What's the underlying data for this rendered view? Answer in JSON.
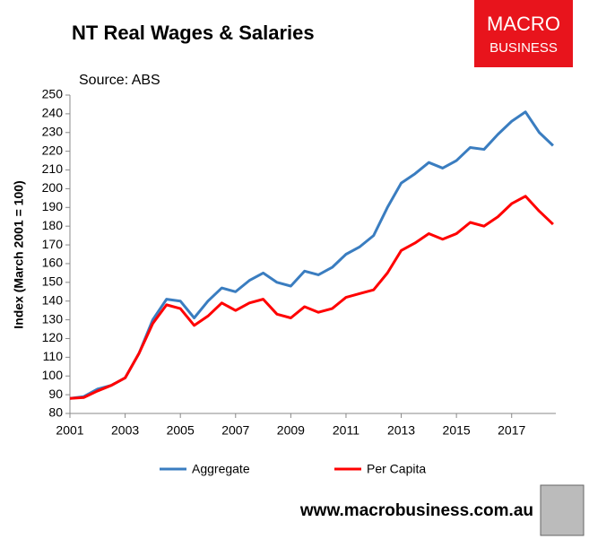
{
  "chart_data": {
    "type": "line",
    "title": "NT Real Wages & Salaries",
    "subtitle": "Source: ABS",
    "ylabel": "Index (March 2001 = 100)",
    "logo": [
      "MACRO",
      "BUSINESS"
    ],
    "footer": "www.macrobusiness.com.au",
    "x": [
      2001,
      2001.5,
      2002,
      2002.5,
      2003,
      2003.5,
      2004,
      2004.5,
      2005,
      2005.5,
      2006,
      2006.5,
      2007,
      2007.5,
      2008,
      2008.5,
      2009,
      2009.5,
      2010,
      2010.5,
      2011,
      2011.5,
      2012,
      2012.5,
      2013,
      2013.5,
      2014,
      2014.5,
      2015,
      2015.5,
      2016,
      2016.5,
      2017,
      2017.5,
      2018,
      2018.5
    ],
    "series": [
      {
        "name": "Aggregate",
        "color": "#3a7dc0",
        "values": [
          88,
          89,
          93,
          95,
          99,
          112,
          130,
          141,
          140,
          131,
          140,
          147,
          145,
          151,
          155,
          150,
          148,
          156,
          154,
          158,
          165,
          169,
          175,
          190,
          203,
          208,
          214,
          211,
          215,
          222,
          221,
          229,
          236,
          241,
          230,
          223
        ]
      },
      {
        "name": "Per Capita",
        "color": "#ff0000",
        "values": [
          88,
          88.5,
          92,
          95,
          99,
          112,
          128,
          138,
          136,
          127,
          132,
          139,
          135,
          139,
          141,
          133,
          131,
          137,
          134,
          136,
          142,
          144,
          146,
          155,
          167,
          171,
          176,
          173,
          176,
          182,
          180,
          185,
          192,
          196,
          188,
          181
        ]
      }
    ],
    "xlim": [
      2001,
      2018.6
    ],
    "xticks": [
      2001,
      2003,
      2005,
      2007,
      2009,
      2011,
      2013,
      2015,
      2017
    ],
    "ylim": [
      80,
      250
    ],
    "yticks": [
      80,
      90,
      100,
      110,
      120,
      130,
      140,
      150,
      160,
      170,
      180,
      190,
      200,
      210,
      220,
      230,
      240,
      250
    ],
    "grid": false
  }
}
